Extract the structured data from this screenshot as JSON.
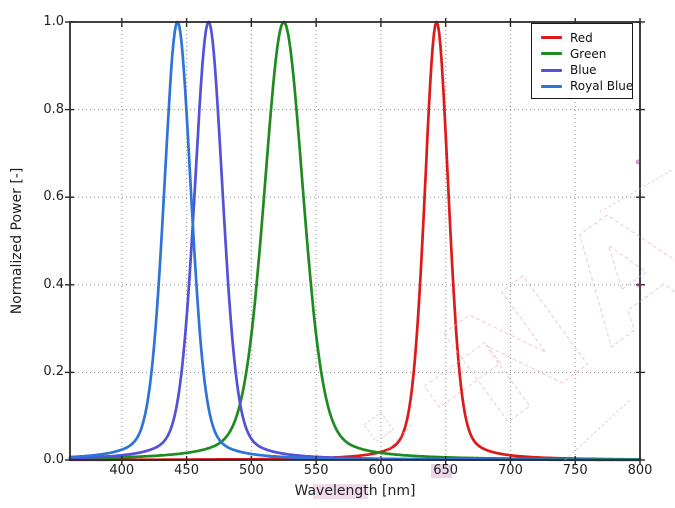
{
  "chart_data": {
    "type": "line",
    "title": "",
    "xlabel": "Wavelength [nm]",
    "ylabel": "Normalized Power [-]",
    "xlim": [
      360,
      800
    ],
    "ylim": [
      0.0,
      1.0
    ],
    "x_ticks": [
      400,
      450,
      500,
      550,
      600,
      650,
      700,
      750,
      800
    ],
    "y_ticks": [
      0.0,
      0.2,
      0.4,
      0.6,
      0.8,
      1.0
    ],
    "y_tick_labels": [
      "0.0",
      "0.2",
      "0.4",
      "0.6",
      "0.8",
      "1.0"
    ],
    "grid": {
      "visible": true,
      "style": "dotted",
      "color": "#999999"
    },
    "legend": {
      "position": "upper-right",
      "border_color": "#1a1a1a",
      "background": "#ffffff"
    },
    "profile": {
      "shape": "pseudo_voigt",
      "lorentzian_fraction": 0.3,
      "sample_step_nm": 1
    },
    "series": [
      {
        "name": "Red",
        "color": "#dc1a1a",
        "peak_nm": 643,
        "peak_value": 1.0,
        "fwhm_nm": 22
      },
      {
        "name": "Green",
        "color": "#1f8b1f",
        "peak_nm": 525,
        "peak_value": 1.0,
        "fwhm_nm": 36
      },
      {
        "name": "Blue",
        "color": "#5251d8",
        "peak_nm": 467,
        "peak_value": 1.0,
        "fwhm_nm": 26
      },
      {
        "name": "Royal Blue",
        "color": "#2e74d8",
        "peak_nm": 443,
        "peak_value": 1.0,
        "fwhm_nm": 25
      }
    ],
    "style": {
      "line_width": 2.7,
      "spine_color": "#2b2b2b",
      "tick_label_color": "#1f1f1f"
    }
  },
  "watermark": {
    "visible_letters": "NA",
    "style": "outline-diagonal",
    "color": "#e3a4c3",
    "accent_color": "#a2258f",
    "angle_deg": -36
  }
}
